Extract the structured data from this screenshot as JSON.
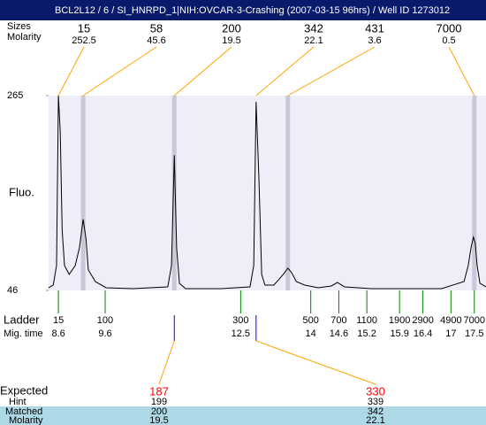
{
  "title": "BCL2L12 / 6 / SI_HNRPD_1|NIH:OVCAR-3-Crashing (2007-03-15 96hrs) / Well ID 1273012",
  "peaks": {
    "labels": [
      "Sizes",
      "Molarity"
    ],
    "sizes": [
      15,
      58,
      200,
      342,
      431,
      7000
    ],
    "molarity": [
      252.5,
      45.6,
      19.5,
      22.1,
      3.6,
      0.5
    ],
    "mig_times": [
      8.6,
      9.13,
      11.08,
      12.83,
      13.51,
      17.5
    ],
    "highlighted": [
      false,
      true,
      true,
      false,
      true,
      true
    ],
    "line_color": "#ffa500",
    "band_color": "#c8c8d8"
  },
  "chart_data": {
    "type": "line",
    "ylabel": "Fluo.",
    "ylim": [
      46,
      265
    ],
    "yticks": [
      46,
      265
    ],
    "xlim": [
      8.39,
      17.75
    ],
    "x": [
      8.39,
      8.49,
      8.56,
      8.6,
      8.64,
      8.68,
      8.73,
      8.83,
      8.96,
      9.05,
      9.13,
      9.19,
      9.24,
      9.39,
      9.62,
      10.19,
      10.94,
      11.02,
      11.08,
      11.13,
      11.19,
      11.32,
      12.08,
      12.7,
      12.78,
      12.83,
      12.89,
      12.95,
      13.02,
      13.21,
      13.33,
      13.44,
      13.51,
      13.59,
      13.69,
      13.87,
      14.16,
      14.44,
      14.57,
      14.72,
      15.29,
      16.8,
      17.28,
      17.37,
      17.43,
      17.48,
      17.52,
      17.56,
      17.62,
      17.75
    ],
    "values": [
      49,
      52,
      74,
      265,
      223,
      114,
      74,
      64,
      74,
      94,
      126,
      104,
      69,
      56,
      49,
      48,
      50,
      74,
      198,
      94,
      54,
      48,
      48,
      50,
      74,
      258,
      173,
      64,
      52,
      52,
      59,
      66,
      71,
      66,
      56,
      52,
      49,
      51,
      55,
      50,
      48,
      48,
      56,
      74,
      94,
      106,
      99,
      74,
      54,
      50
    ],
    "color": "#000000",
    "background": "#eeeef8"
  },
  "ladder": {
    "labels": [
      "Ladder",
      "Mig. time"
    ],
    "sizes": [
      15,
      100,
      300,
      500,
      700,
      1100,
      1900,
      2900,
      4900,
      7000
    ],
    "mig_times": [
      8.6,
      9.6,
      12.5,
      14,
      14.6,
      15.2,
      15.9,
      16.4,
      17,
      17.5
    ],
    "color": "#008000"
  },
  "expected": {
    "labels": [
      "Expected",
      "Hint",
      "Matched",
      "Molarity"
    ],
    "expected": [
      187,
      330
    ],
    "hint": [
      199,
      339
    ],
    "matched": [
      200,
      342
    ],
    "molarity": [
      19.5,
      22.1
    ],
    "mig_times": [
      11.08,
      12.83
    ],
    "expected_color": "#ff0000",
    "marker_color": "#0000ff",
    "row_color": "#add8e6"
  }
}
